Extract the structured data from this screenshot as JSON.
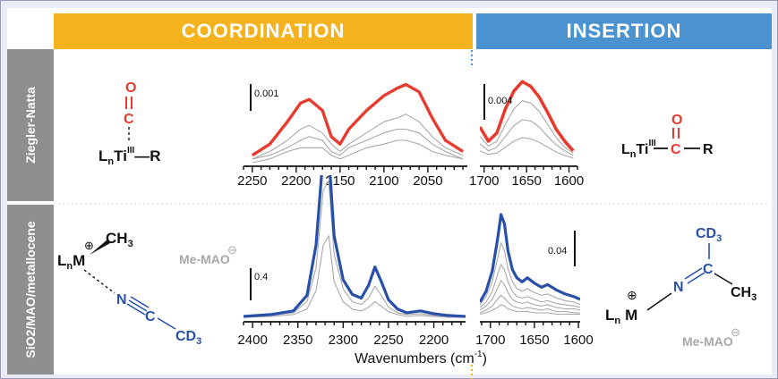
{
  "headers": {
    "coordination": "COORDINATION",
    "insertion": "INSERTION"
  },
  "side_labels": {
    "row1": "Ziegler-Natta",
    "row2": "SiO2/MAO/metallocene"
  },
  "colors": {
    "coordination": "#f5b21f",
    "insertion": "#4a93d0",
    "side": "#8e8e8e",
    "red": "#e63b2e",
    "blue": "#2950a8",
    "gray": "#a8a8a8"
  },
  "structures": {
    "zn_coord": {
      "O": "O",
      "C": "C",
      "ligand": "L",
      "ligand_sub": "n",
      "metal": "Ti",
      "ox": "III",
      "R": "—R"
    },
    "zn_ins": {
      "O": "O",
      "C": "C",
      "ligand": "L",
      "ligand_sub": "n",
      "metal": "Ti",
      "ox": "III",
      "R": "R"
    },
    "met_coord": {
      "plus": "⊕",
      "CH3": "CH",
      "CH3_sub": "3",
      "ligand": "L",
      "ligand_sub": "n",
      "metal": "M",
      "N": "N",
      "C": "C",
      "CD3": "CD",
      "CD3_sub": "3",
      "counter": "Me-MAO",
      "counter_charge": "⊖"
    },
    "met_ins": {
      "CD3": "CD",
      "CD3_sub": "3",
      "C": "C",
      "CH3": "CH",
      "CH3_sub": "3",
      "N": "N",
      "plus": "⊕",
      "ligand": "L",
      "ligand_sub": "n",
      "metal": "M",
      "counter": "Me-MAO",
      "counter_charge": "⊖"
    }
  },
  "axis_title": "Wavenumbers (cm",
  "axis_title_sup": "-1",
  "axis_title_end": ")",
  "chart_data": [
    {
      "type": "line",
      "id": "zn-coordination",
      "scale_bar": "0.001",
      "xlim": [
        2260,
        2005
      ],
      "x_ticks": [
        2250,
        2200,
        2150,
        2100,
        2050
      ],
      "tick_labels": [
        "2250",
        "2200",
        "2150",
        "2100",
        "2050"
      ],
      "x": [
        2250,
        2230,
        2210,
        2195,
        2185,
        2170,
        2160,
        2150,
        2140,
        2120,
        2100,
        2085,
        2075,
        2060,
        2045,
        2030,
        2010
      ],
      "series": [
        {
          "values": [
            0.0002,
            0.0005,
            0.0011,
            0.0016,
            0.0017,
            0.0014,
            0.0007,
            0.0005,
            0.0009,
            0.0014,
            0.0018,
            0.002,
            0.0021,
            0.0019,
            0.0012,
            0.0006,
            0.0003
          ]
        },
        {
          "values": [
            0.0001,
            0.0003,
            0.0006,
            0.0009,
            0.001,
            0.0008,
            0.0005,
            0.0003,
            0.0005,
            0.0008,
            0.0011,
            0.0012,
            0.0013,
            0.0011,
            0.0007,
            0.0004,
            0.0002
          ]
        },
        {
          "values": [
            0.0001,
            0.0002,
            0.0004,
            0.0006,
            0.0007,
            0.0006,
            0.0003,
            0.0002,
            0.0004,
            0.0006,
            0.0008,
            0.0009,
            0.0009,
            0.0008,
            0.0005,
            0.0003,
            0.0001
          ]
        },
        {
          "values": [
            0.0,
            0.0001,
            0.0003,
            0.0004,
            0.0004,
            0.0004,
            0.0002,
            0.0001,
            0.0002,
            0.0004,
            0.0005,
            0.0006,
            0.0006,
            0.0005,
            0.0003,
            0.0002,
            0.0001
          ]
        }
      ]
    },
    {
      "type": "line",
      "id": "zn-insertion",
      "scale_bar": "0.004",
      "xlim": [
        1705,
        1590
      ],
      "x_ticks": [
        1700,
        1650,
        1600
      ],
      "tick_labels": [
        "1700",
        "1650",
        "1600"
      ],
      "x": [
        1705,
        1695,
        1685,
        1675,
        1665,
        1655,
        1645,
        1635,
        1625,
        1615,
        1605,
        1595
      ],
      "series": [
        {
          "values": [
            0.003,
            0.0018,
            0.0025,
            0.0045,
            0.006,
            0.0068,
            0.0064,
            0.0055,
            0.0042,
            0.0028,
            0.0018,
            0.001
          ]
        },
        {
          "values": [
            0.0022,
            0.0014,
            0.0018,
            0.0032,
            0.0045,
            0.0052,
            0.005,
            0.0043,
            0.0032,
            0.0021,
            0.0013,
            0.0008
          ]
        },
        {
          "values": [
            0.0016,
            0.001,
            0.0013,
            0.0022,
            0.0031,
            0.0036,
            0.0035,
            0.003,
            0.0022,
            0.0015,
            0.001,
            0.0006
          ]
        },
        {
          "values": [
            0.001,
            0.0007,
            0.0008,
            0.0013,
            0.0018,
            0.0021,
            0.002,
            0.0017,
            0.0013,
            0.0009,
            0.0006,
            0.0004
          ]
        }
      ]
    },
    {
      "type": "line",
      "id": "met-coordination",
      "scale_bar": "0.4",
      "xlim": [
        2410,
        2165
      ],
      "x_ticks": [
        2400,
        2350,
        2300,
        2250,
        2200
      ],
      "tick_labels": [
        "2400",
        "2350",
        "2300",
        "2250",
        "2200"
      ],
      "x": [
        2410,
        2380,
        2355,
        2340,
        2330,
        2322,
        2316,
        2310,
        2300,
        2290,
        2280,
        2272,
        2265,
        2258,
        2250,
        2240,
        2230,
        2215,
        2200,
        2185,
        2165
      ],
      "series": [
        {
          "values": [
            0.02,
            0.04,
            0.08,
            0.25,
            0.8,
            1.8,
            1.8,
            0.9,
            0.42,
            0.26,
            0.22,
            0.36,
            0.56,
            0.4,
            0.2,
            0.1,
            0.06,
            0.08,
            0.05,
            0.03,
            0.02
          ]
        },
        {
          "values": [
            0.01,
            0.03,
            0.06,
            0.18,
            0.55,
            1.4,
            1.5,
            0.7,
            0.32,
            0.18,
            0.15,
            0.22,
            0.35,
            0.25,
            0.12,
            0.06,
            0.04,
            0.05,
            0.03,
            0.02,
            0.01
          ]
        },
        {
          "values": [
            0.01,
            0.02,
            0.04,
            0.1,
            0.3,
            0.8,
            0.9,
            0.4,
            0.18,
            0.1,
            0.08,
            0.12,
            0.18,
            0.13,
            0.07,
            0.04,
            0.02,
            0.03,
            0.02,
            0.01,
            0.01
          ]
        }
      ]
    },
    {
      "type": "line",
      "id": "met-insertion",
      "scale_bar": "0.04",
      "xlim": [
        1712,
        1598
      ],
      "x_ticks": [
        1700,
        1650,
        1600
      ],
      "tick_labels": [
        "1700",
        "1650",
        "1600"
      ],
      "x": [
        1712,
        1705,
        1698,
        1692,
        1688,
        1684,
        1680,
        1675,
        1670,
        1664,
        1658,
        1650,
        1642,
        1635,
        1625,
        1615,
        1605,
        1598
      ],
      "series": [
        {
          "values": [
            0.012,
            0.02,
            0.035,
            0.058,
            0.077,
            0.07,
            0.05,
            0.036,
            0.03,
            0.027,
            0.03,
            0.026,
            0.023,
            0.025,
            0.021,
            0.018,
            0.016,
            0.014
          ]
        },
        {
          "values": [
            0.01,
            0.016,
            0.027,
            0.044,
            0.056,
            0.05,
            0.037,
            0.027,
            0.022,
            0.02,
            0.022,
            0.019,
            0.017,
            0.018,
            0.015,
            0.013,
            0.012,
            0.01
          ]
        },
        {
          "values": [
            0.008,
            0.012,
            0.02,
            0.032,
            0.04,
            0.036,
            0.027,
            0.02,
            0.016,
            0.015,
            0.016,
            0.014,
            0.012,
            0.013,
            0.011,
            0.01,
            0.009,
            0.008
          ]
        },
        {
          "values": [
            0.006,
            0.009,
            0.014,
            0.022,
            0.028,
            0.025,
            0.019,
            0.014,
            0.012,
            0.011,
            0.012,
            0.01,
            0.009,
            0.01,
            0.008,
            0.007,
            0.007,
            0.006
          ]
        },
        {
          "values": [
            0.004,
            0.006,
            0.009,
            0.014,
            0.017,
            0.015,
            0.012,
            0.009,
            0.008,
            0.007,
            0.008,
            0.007,
            0.006,
            0.007,
            0.005,
            0.005,
            0.004,
            0.004
          ]
        },
        {
          "values": [
            0.003,
            0.004,
            0.006,
            0.008,
            0.01,
            0.009,
            0.007,
            0.006,
            0.005,
            0.005,
            0.005,
            0.004,
            0.004,
            0.004,
            0.003,
            0.003,
            0.003,
            0.003
          ]
        }
      ]
    }
  ]
}
